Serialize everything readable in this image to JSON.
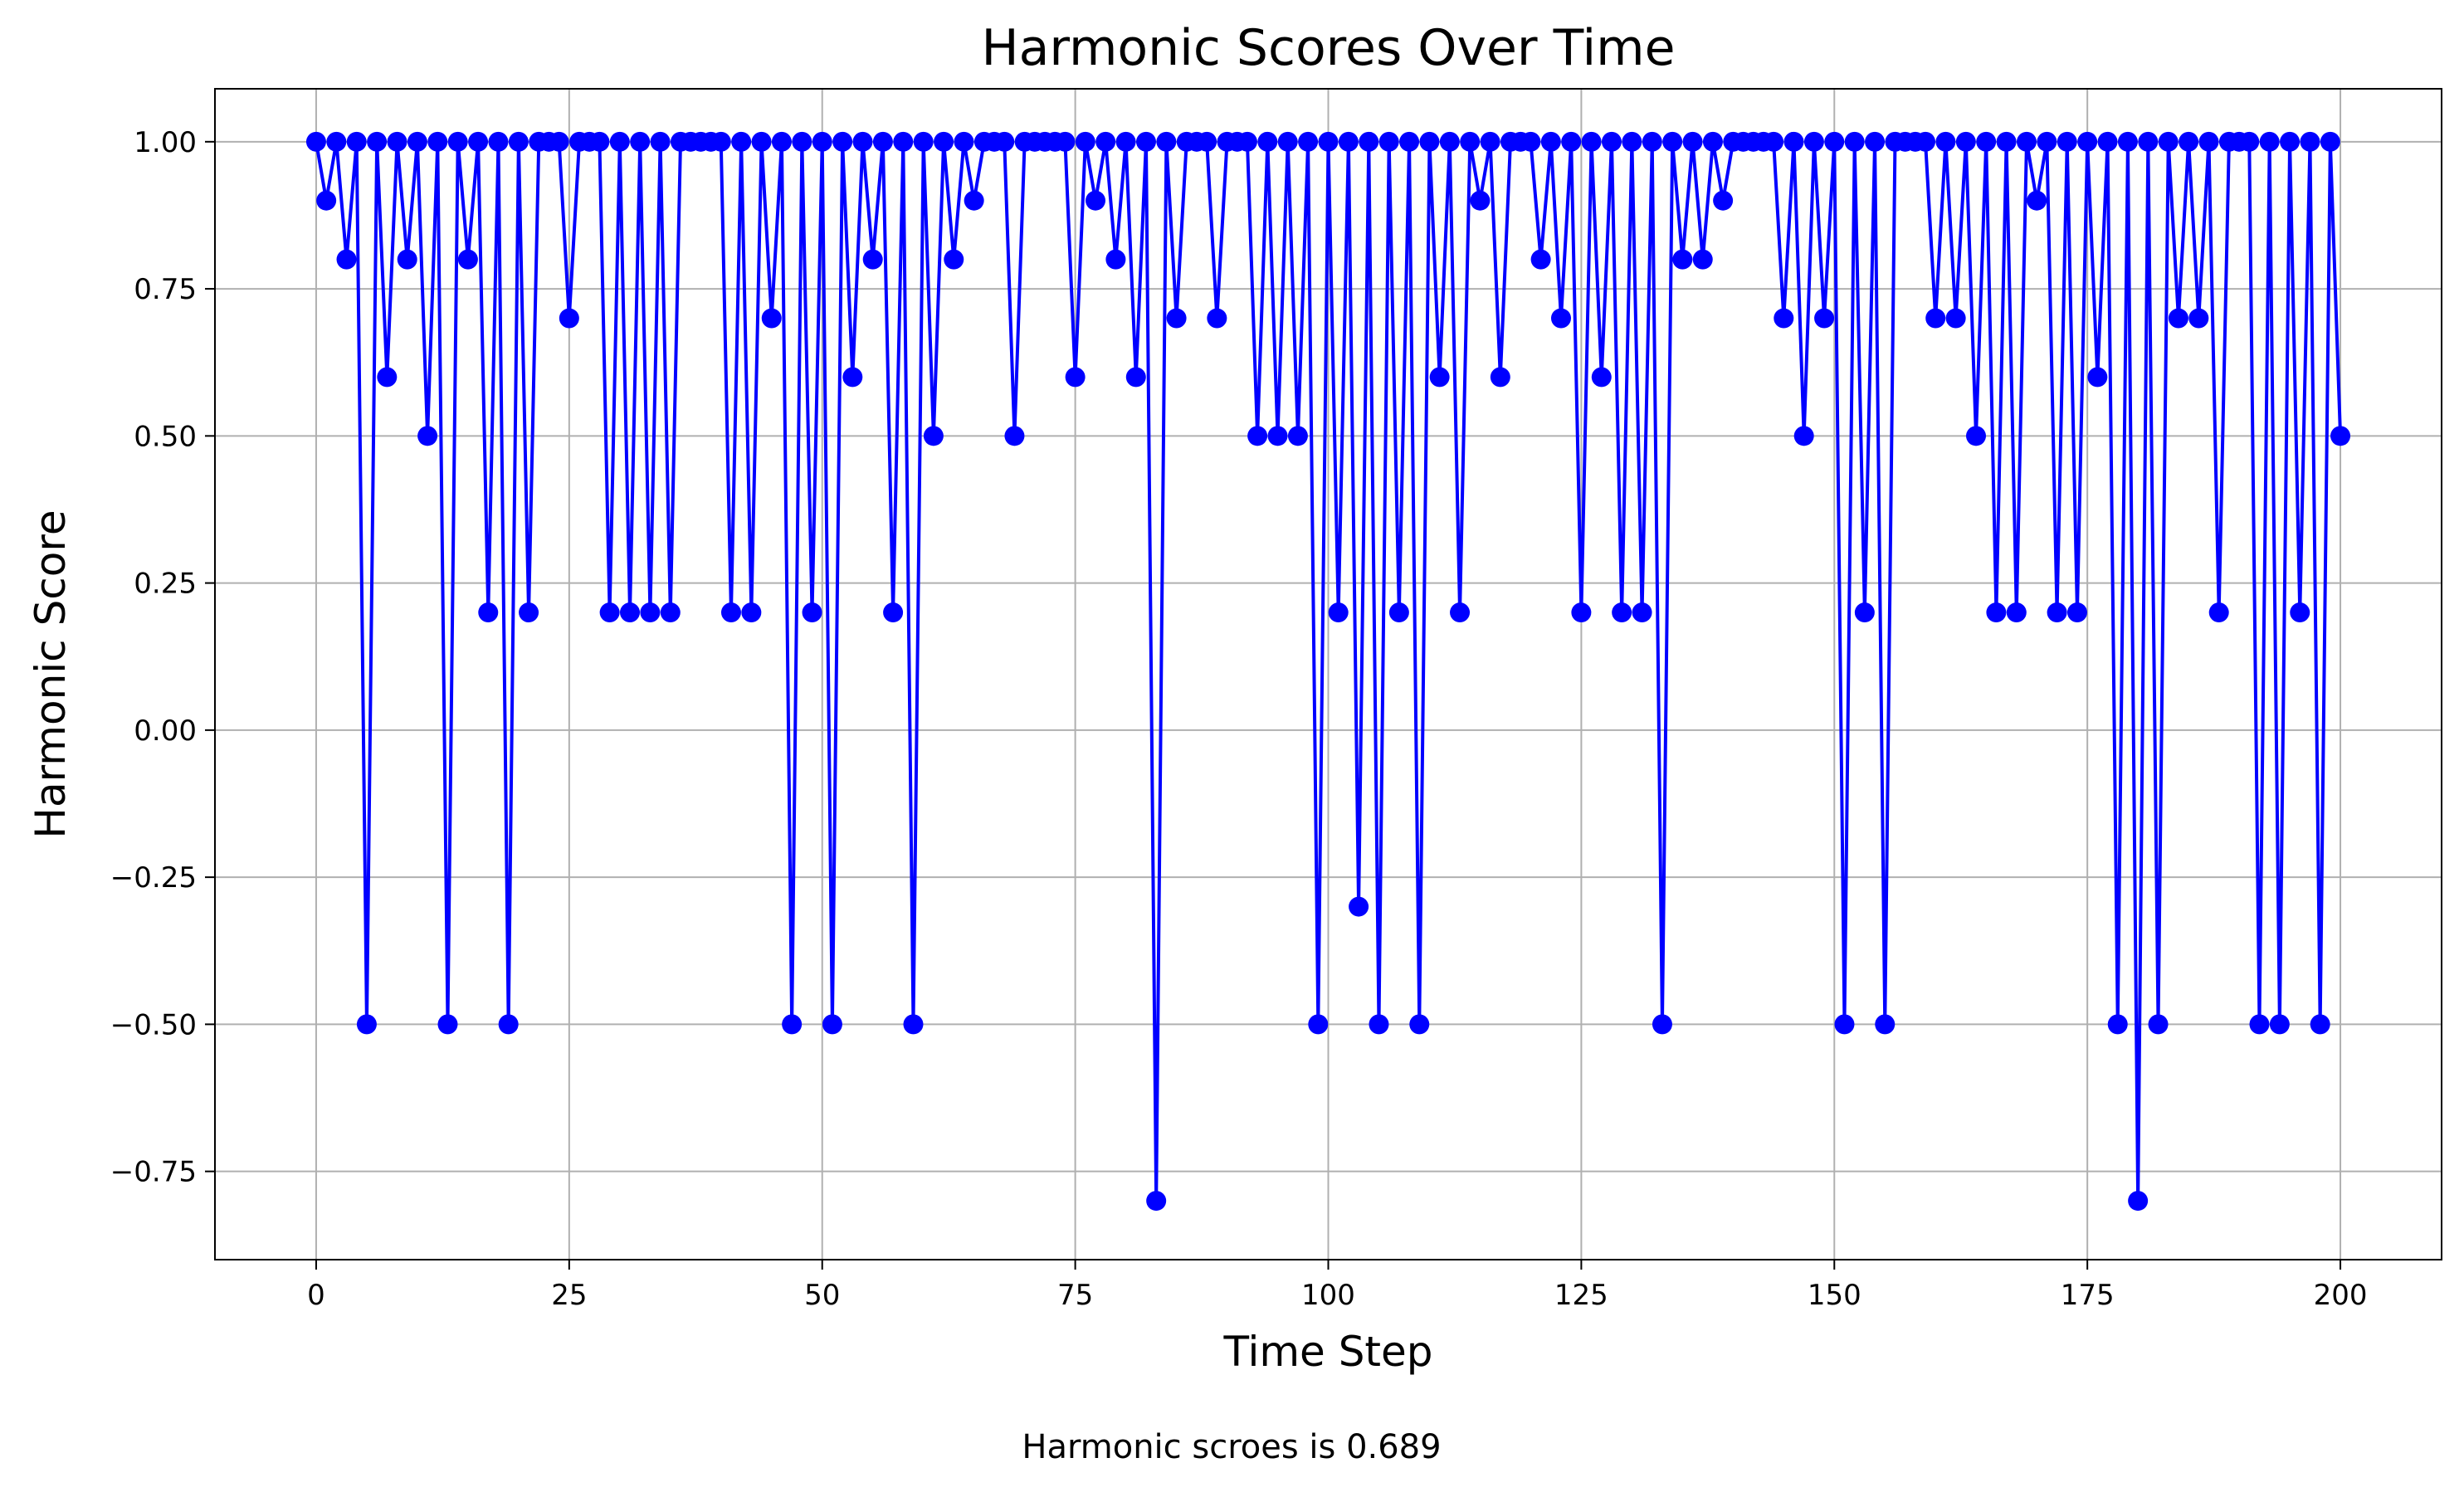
{
  "chart_data": {
    "type": "line",
    "title": "Harmonic Scores Over Time",
    "xlabel": "Time Step",
    "ylabel": "Harmonic Score",
    "caption": "Harmonic scroes is 0.689",
    "xlim": [
      -10,
      210
    ],
    "ylim": [
      -0.9,
      1.09
    ],
    "xticks": [
      0,
      25,
      50,
      75,
      100,
      125,
      150,
      175,
      200
    ],
    "xtick_labels": [
      "0",
      "25",
      "50",
      "75",
      "100",
      "125",
      "150",
      "175",
      "200"
    ],
    "yticks": [
      1.0,
      0.75,
      0.5,
      0.25,
      0.0,
      -0.25,
      -0.5,
      -0.75
    ],
    "ytick_labels": [
      "1.00",
      "0.75",
      "0.50",
      "0.25",
      "0.00",
      "−0.25",
      "−0.50",
      "−0.75"
    ],
    "grid": true,
    "color": "#0000ff",
    "series": [
      {
        "name": "Harmonic Score",
        "values": [
          1.0,
          0.9,
          1.0,
          0.8,
          1.0,
          -0.5,
          1.0,
          0.6,
          1.0,
          0.8,
          1.0,
          0.5,
          1.0,
          -0.5,
          1.0,
          0.8,
          1.0,
          0.2,
          1.0,
          -0.5,
          1.0,
          0.2,
          1.0,
          1.0,
          1.0,
          0.7,
          1.0,
          1.0,
          1.0,
          0.2,
          1.0,
          0.2,
          1.0,
          0.2,
          1.0,
          0.2,
          1.0,
          1.0,
          1.0,
          1.0,
          1.0,
          0.2,
          1.0,
          0.2,
          1.0,
          0.7,
          1.0,
          -0.5,
          1.0,
          0.2,
          1.0,
          -0.5,
          1.0,
          0.6,
          1.0,
          0.8,
          1.0,
          0.2,
          1.0,
          -0.5,
          1.0,
          0.5,
          1.0,
          0.8,
          1.0,
          0.9,
          1.0,
          1.0,
          1.0,
          0.5,
          1.0,
          1.0,
          1.0,
          1.0,
          1.0,
          0.6,
          1.0,
          0.9,
          1.0,
          0.8,
          1.0,
          0.6,
          1.0,
          -0.8,
          1.0,
          0.7,
          1.0,
          1.0,
          1.0,
          0.7,
          1.0,
          1.0,
          1.0,
          0.5,
          1.0,
          0.5,
          1.0,
          0.5,
          1.0,
          -0.5,
          1.0,
          0.2,
          1.0,
          -0.3,
          1.0,
          -0.5,
          1.0,
          0.2,
          1.0,
          -0.5,
          1.0,
          0.6,
          1.0,
          0.2,
          1.0,
          0.9,
          1.0,
          0.6,
          1.0,
          1.0,
          1.0,
          0.8,
          1.0,
          0.7,
          1.0,
          0.2,
          1.0,
          0.6,
          1.0,
          0.2,
          1.0,
          0.2,
          1.0,
          -0.5,
          1.0,
          0.8,
          1.0,
          0.8,
          1.0,
          0.9,
          1.0,
          1.0,
          1.0,
          1.0,
          1.0,
          0.7,
          1.0,
          0.5,
          1.0,
          0.7,
          1.0,
          -0.5,
          1.0,
          0.2,
          1.0,
          -0.5,
          1.0,
          1.0,
          1.0,
          1.0,
          0.7,
          1.0,
          0.7,
          1.0,
          0.5,
          1.0,
          0.2,
          1.0,
          0.2,
          1.0,
          0.9,
          1.0,
          0.2,
          1.0,
          0.2,
          1.0,
          0.6,
          1.0,
          -0.5,
          1.0,
          -0.8,
          1.0,
          -0.5,
          1.0,
          0.7,
          1.0,
          0.7,
          1.0,
          0.2,
          1.0,
          1.0,
          1.0,
          -0.5,
          1.0,
          -0.5,
          1.0,
          0.2,
          1.0,
          -0.5,
          1.0,
          0.5
        ]
      }
    ]
  }
}
